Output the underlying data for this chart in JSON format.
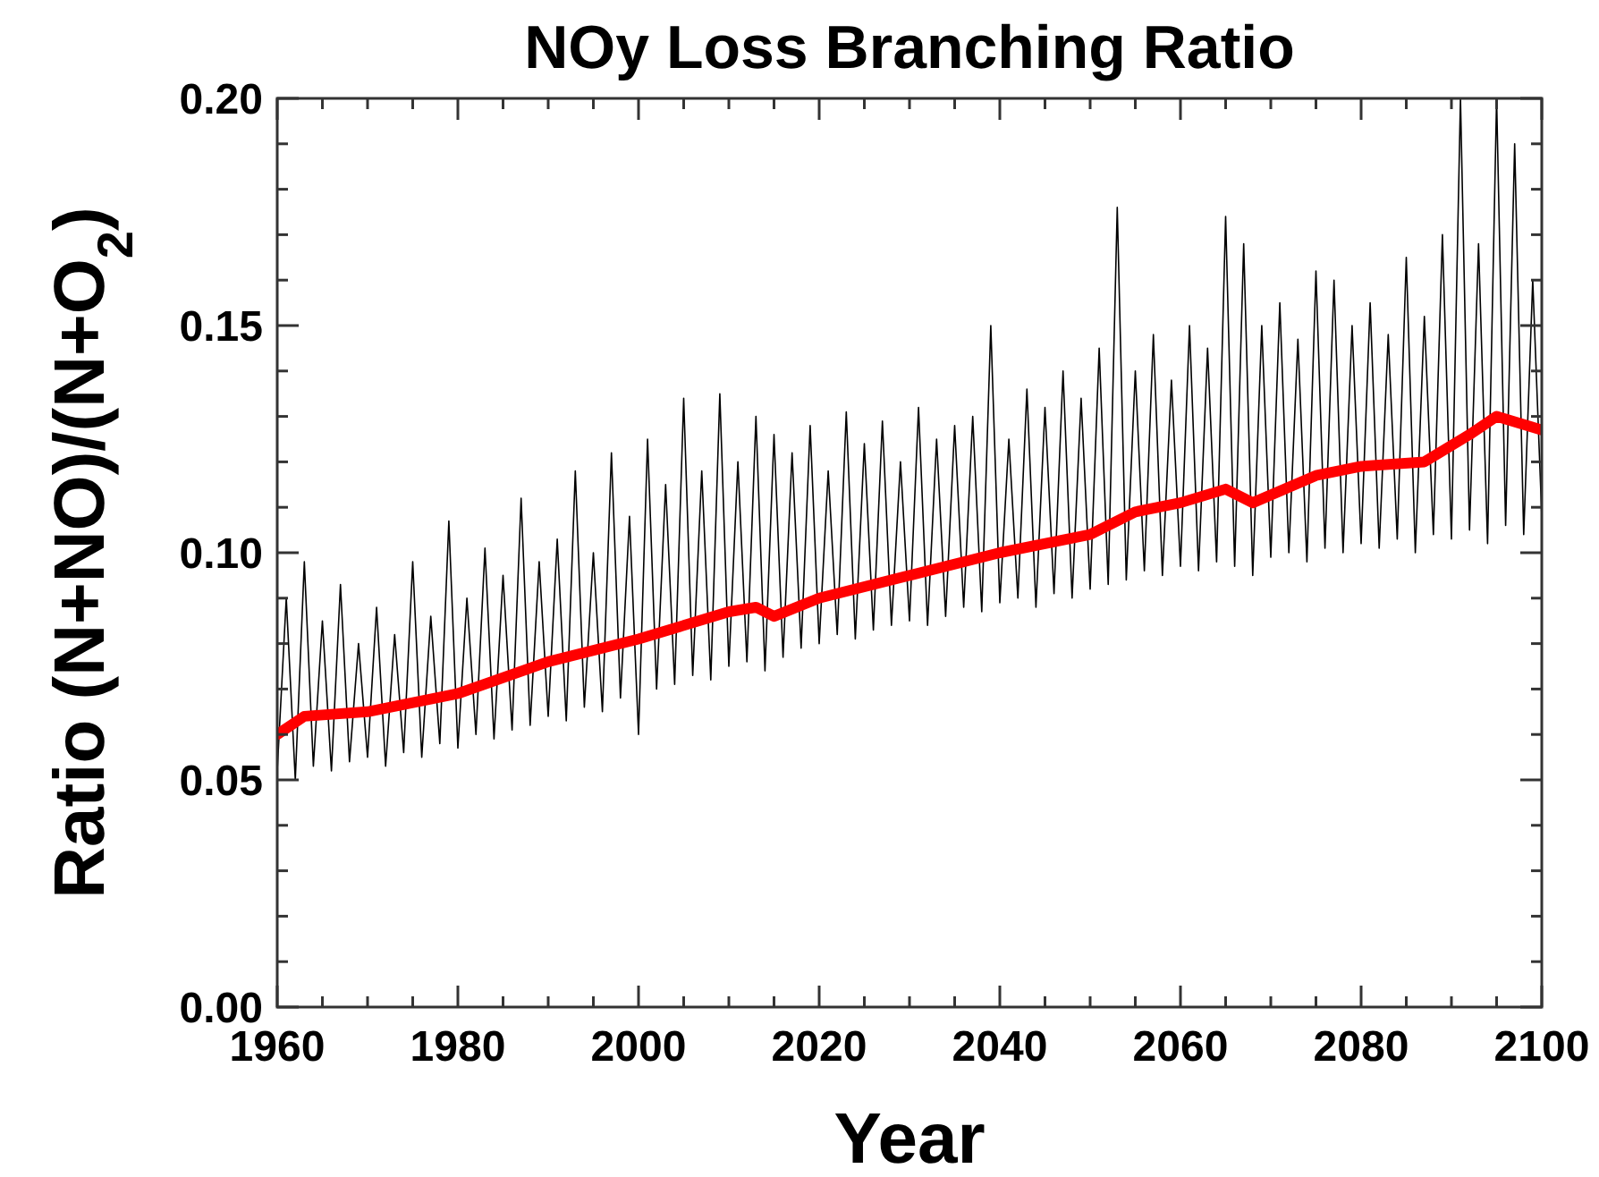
{
  "chart_data": {
    "type": "line",
    "title": "NOy Loss Branching Ratio",
    "xlabel": "Year",
    "ylabel": "Ratio (N+NO)/(N+O$_{2}$)",
    "xlim": [
      1960,
      2100
    ],
    "ylim": [
      0,
      0.2
    ],
    "xticks": [
      1960,
      {
        "value": 1965,
        "label": null
      },
      {
        "value": 1970,
        "label": null
      },
      {
        "value": 1975,
        "label": null
      },
      1980,
      {
        "value": 1985,
        "label": null
      },
      {
        "value": 1990,
        "label": null
      },
      {
        "value": 1995,
        "label": null
      },
      2000,
      {
        "value": 2005,
        "label": null
      },
      {
        "value": 2010,
        "label": null
      },
      {
        "value": 2015,
        "label": null
      },
      2020,
      {
        "value": 2025,
        "label": null
      },
      {
        "value": 2030,
        "label": null
      },
      {
        "value": 2035,
        "label": null
      },
      2040,
      {
        "value": 2045,
        "label": null
      },
      {
        "value": 2050,
        "label": null
      },
      {
        "value": 2055,
        "label": null
      },
      2060,
      {
        "value": 2065,
        "label": null
      },
      {
        "value": 2070,
        "label": null
      },
      {
        "value": 2075,
        "label": null
      },
      2080,
      {
        "value": 2085,
        "label": null
      },
      {
        "value": 2090,
        "label": null
      },
      {
        "value": 2095,
        "label": null
      },
      2100
    ],
    "yticks": [
      {
        "value": 0,
        "label": "0.00"
      },
      {
        "value": 0.01,
        "label": null
      },
      {
        "value": 0.02,
        "label": null
      },
      {
        "value": 0.03,
        "label": null
      },
      {
        "value": 0.04,
        "label": null
      },
      {
        "value": 0.05,
        "label": "0.05"
      },
      {
        "value": 0.06,
        "label": null
      },
      {
        "value": 0.07,
        "label": null
      },
      {
        "value": 0.08,
        "label": null
      },
      {
        "value": 0.09,
        "label": null
      },
      {
        "value": 0.1,
        "label": "0.10"
      },
      {
        "value": 0.11,
        "label": null
      },
      {
        "value": 0.12,
        "label": null
      },
      {
        "value": 0.13,
        "label": null
      },
      {
        "value": 0.14,
        "label": null
      },
      {
        "value": 0.15,
        "label": "0.15"
      },
      {
        "value": 0.16,
        "label": null
      },
      {
        "value": 0.17,
        "label": null
      },
      {
        "value": 0.18,
        "label": null
      },
      {
        "value": 0.19,
        "label": null
      },
      {
        "value": 0.2,
        "label": "0.20"
      }
    ],
    "grid": false,
    "marker": "none",
    "line_style": "solid",
    "series": [
      {
        "color": "#000000",
        "x": [
          1960,
          1961,
          1962,
          1963,
          1964,
          1965,
          1966,
          1967,
          1968,
          1969,
          1970,
          1971,
          1972,
          1973,
          1974,
          1975,
          1976,
          1977,
          1978,
          1979,
          1980,
          1981,
          1982,
          1983,
          1984,
          1985,
          1986,
          1987,
          1988,
          1989,
          1990,
          1991,
          1992,
          1993,
          1994,
          1995,
          1996,
          1997,
          1998,
          1999,
          2000,
          2001,
          2002,
          2003,
          2004,
          2005,
          2006,
          2007,
          2008,
          2009,
          2010,
          2011,
          2012,
          2013,
          2014,
          2015,
          2016,
          2017,
          2018,
          2019,
          2020,
          2021,
          2022,
          2023,
          2024,
          2025,
          2026,
          2027,
          2028,
          2029,
          2030,
          2031,
          2032,
          2033,
          2034,
          2035,
          2036,
          2037,
          2038,
          2039,
          2040,
          2041,
          2042,
          2043,
          2044,
          2045,
          2046,
          2047,
          2048,
          2049,
          2050,
          2051,
          2052,
          2053,
          2054,
          2055,
          2056,
          2057,
          2058,
          2059,
          2060,
          2061,
          2062,
          2063,
          2064,
          2065,
          2066,
          2067,
          2068,
          2069,
          2070,
          2071,
          2072,
          2073,
          2074,
          2075,
          2076,
          2077,
          2078,
          2079,
          2080,
          2081,
          2082,
          2083,
          2084,
          2085,
          2086,
          2087,
          2088,
          2089,
          2090,
          2091,
          2092,
          2093,
          2094,
          2095,
          2096,
          2097,
          2098,
          2099,
          2100
        ],
        "values": [
          0.052,
          0.09,
          0.05,
          0.098,
          0.053,
          0.085,
          0.052,
          0.093,
          0.054,
          0.08,
          0.055,
          0.088,
          0.053,
          0.082,
          0.056,
          0.098,
          0.055,
          0.086,
          0.058,
          0.107,
          0.057,
          0.09,
          0.06,
          0.101,
          0.059,
          0.095,
          0.061,
          0.112,
          0.062,
          0.098,
          0.064,
          0.103,
          0.063,
          0.118,
          0.066,
          0.1,
          0.065,
          0.122,
          0.068,
          0.108,
          0.06,
          0.125,
          0.07,
          0.115,
          0.071,
          0.134,
          0.073,
          0.118,
          0.072,
          0.135,
          0.075,
          0.12,
          0.076,
          0.13,
          0.074,
          0.126,
          0.077,
          0.122,
          0.079,
          0.128,
          0.08,
          0.118,
          0.082,
          0.131,
          0.081,
          0.124,
          0.083,
          0.129,
          0.084,
          0.12,
          0.085,
          0.132,
          0.084,
          0.125,
          0.086,
          0.128,
          0.088,
          0.13,
          0.087,
          0.15,
          0.089,
          0.125,
          0.09,
          0.136,
          0.088,
          0.132,
          0.091,
          0.14,
          0.09,
          0.134,
          0.092,
          0.145,
          0.093,
          0.176,
          0.094,
          0.14,
          0.096,
          0.148,
          0.095,
          0.138,
          0.097,
          0.15,
          0.096,
          0.145,
          0.098,
          0.174,
          0.097,
          0.168,
          0.095,
          0.15,
          0.099,
          0.155,
          0.1,
          0.147,
          0.098,
          0.162,
          0.101,
          0.16,
          0.1,
          0.15,
          0.102,
          0.155,
          0.101,
          0.148,
          0.103,
          0.165,
          0.1,
          0.152,
          0.104,
          0.17,
          0.103,
          0.2,
          0.105,
          0.168,
          0.102,
          0.2,
          0.106,
          0.19,
          0.104,
          0.16,
          0.108
        ]
      },
      {
        "color": "#ff0000",
        "x": [
          1960,
          1963,
          1970,
          1980,
          1990,
          2000,
          2010,
          2013,
          2015,
          2020,
          2030,
          2040,
          2050,
          2055,
          2060,
          2065,
          2068,
          2075,
          2080,
          2087,
          2092,
          2095,
          2100
        ],
        "values": [
          0.06,
          0.064,
          0.065,
          0.069,
          0.076,
          0.081,
          0.087,
          0.088,
          0.086,
          0.09,
          0.095,
          0.1,
          0.104,
          0.109,
          0.111,
          0.114,
          0.111,
          0.117,
          0.119,
          0.12,
          0.126,
          0.13,
          0.127
        ]
      }
    ]
  }
}
